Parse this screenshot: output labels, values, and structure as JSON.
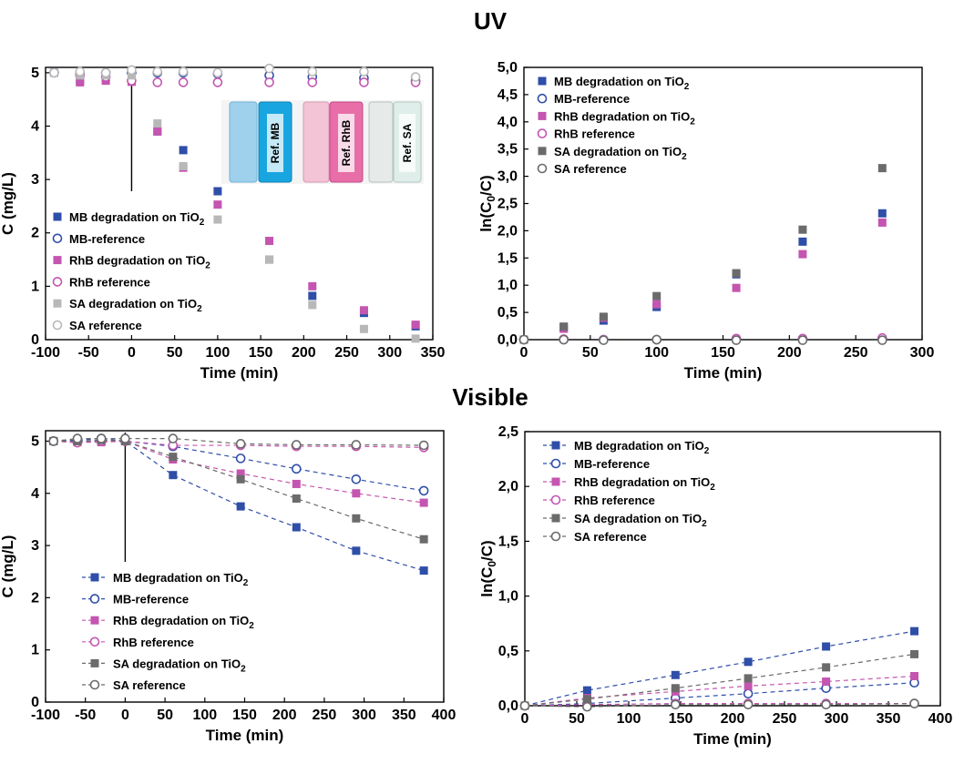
{
  "sections": {
    "uv": "UV",
    "visible": "Visible"
  },
  "colors": {
    "MB": "#2f4ea8",
    "RhB": "#c455b0",
    "SA_uv": "#b8b8b8",
    "SA_vis": "#6b6b6b",
    "SA_ref": "#8a8a8a"
  },
  "inset_labels": [
    "Ref. MB",
    "Ref. RhB",
    "Ref. SA"
  ],
  "chart_data": [
    {
      "id": "uv-conc",
      "type": "scatter",
      "xlabel": "Time (min)",
      "ylabel": "C (mg/L)",
      "xlim": [
        -100,
        350
      ],
      "ylim": [
        0,
        5.1
      ],
      "xticks": [
        "-100",
        "-50",
        "0",
        "50",
        "100",
        "150",
        "200",
        "250",
        "300",
        "350"
      ],
      "yticks": [
        "0",
        "1",
        "2",
        "3",
        "4",
        "5"
      ],
      "vline_x": 0,
      "legend_position": "left-middle",
      "series": [
        {
          "name": "MB degradation on TiO",
          "sub": "2",
          "marker": "square",
          "color": "#2f4ea8",
          "x": [
            -90,
            -60,
            -30,
            0,
            30,
            60,
            100,
            160,
            210,
            270,
            330
          ],
          "y": [
            5.0,
            4.85,
            4.9,
            4.85,
            3.9,
            3.55,
            2.78,
            1.5,
            0.82,
            0.5,
            0.25
          ]
        },
        {
          "name": "MB-reference",
          "marker": "circle",
          "color": "#2f4ea8",
          "x": [
            -90,
            -60,
            -30,
            0,
            30,
            60,
            100,
            160,
            210,
            270,
            330
          ],
          "y": [
            5.0,
            5.0,
            5.0,
            5.0,
            5.0,
            5.0,
            4.98,
            4.95,
            4.92,
            4.9,
            4.85
          ]
        },
        {
          "name": "RhB degradation on TiO",
          "sub": "2",
          "marker": "square",
          "color": "#c455b0",
          "x": [
            -90,
            -60,
            -30,
            0,
            30,
            60,
            100,
            160,
            210,
            270,
            330
          ],
          "y": [
            5.0,
            4.82,
            4.85,
            4.83,
            3.9,
            3.22,
            2.53,
            1.85,
            1.0,
            0.55,
            0.28
          ]
        },
        {
          "name": "RhB reference",
          "marker": "circle",
          "color": "#c455b0",
          "x": [
            -90,
            -60,
            -30,
            0,
            30,
            60,
            100,
            160,
            210,
            270,
            330
          ],
          "y": [
            5.0,
            4.95,
            4.92,
            4.85,
            4.82,
            4.82,
            4.82,
            4.82,
            4.82,
            4.82,
            4.82
          ]
        },
        {
          "name": "SA degradation on TiO",
          "sub": "2",
          "marker": "square",
          "color": "#b8b8b8",
          "x": [
            -90,
            -60,
            -30,
            0,
            30,
            60,
            100,
            160,
            210,
            270,
            330
          ],
          "y": [
            5.0,
            4.95,
            4.95,
            4.95,
            4.05,
            3.25,
            2.25,
            1.5,
            0.65,
            0.2,
            0.02
          ]
        },
        {
          "name": "SA reference",
          "marker": "circle",
          "color": "#b8b8b8",
          "x": [
            -90,
            -60,
            -30,
            0,
            30,
            60,
            100,
            160,
            210,
            270,
            330
          ],
          "y": [
            5.0,
            5.02,
            5.0,
            5.05,
            5.02,
            5.02,
            5.0,
            5.08,
            5.02,
            5.02,
            4.92
          ]
        }
      ]
    },
    {
      "id": "uv-ln",
      "type": "scatter",
      "xlabel": "Time (min)",
      "ylabel": "ln(C",
      "xlim": [
        0,
        300
      ],
      "ylim": [
        0,
        5.0
      ],
      "xticks": [
        "0",
        "50",
        "100",
        "150",
        "200",
        "250",
        "300"
      ],
      "yticks": [
        "0,0",
        "0,5",
        "1,0",
        "1,5",
        "2,0",
        "2,5",
        "3,0",
        "3,5",
        "4,0",
        "4,5",
        "5,0"
      ],
      "legend_position": "top-left",
      "series": [
        {
          "name": "MB degradation on TiO",
          "sub": "2",
          "marker": "square",
          "color": "#2f4ea8",
          "x": [
            0,
            30,
            60,
            100,
            160,
            210,
            270
          ],
          "y": [
            0.0,
            0.22,
            0.35,
            0.6,
            1.2,
            1.8,
            2.32
          ]
        },
        {
          "name": "MB-reference",
          "marker": "circle",
          "color": "#2f4ea8",
          "x": [
            0,
            30,
            60,
            100,
            160,
            210,
            270
          ],
          "y": [
            0.0,
            0.0,
            0.0,
            0.0,
            0.01,
            0.01,
            0.02
          ]
        },
        {
          "name": "RhB degradation on TiO",
          "sub": "2",
          "marker": "square",
          "color": "#c455b0",
          "x": [
            0,
            30,
            60,
            100,
            160,
            210,
            270
          ],
          "y": [
            0.0,
            0.2,
            0.4,
            0.65,
            0.95,
            1.57,
            2.15
          ]
        },
        {
          "name": "RhB reference",
          "marker": "circle",
          "color": "#c455b0",
          "x": [
            0,
            30,
            60,
            100,
            160,
            210,
            270
          ],
          "y": [
            0.0,
            0.01,
            0.0,
            0.0,
            0.02,
            0.02,
            0.03
          ]
        },
        {
          "name": "SA degradation on TiO",
          "sub": "2",
          "marker": "square",
          "color": "#6b6b6b",
          "x": [
            0,
            30,
            60,
            100,
            160,
            210,
            270
          ],
          "y": [
            0.0,
            0.24,
            0.42,
            0.8,
            1.22,
            2.02,
            3.15
          ]
        },
        {
          "name": "SA reference",
          "marker": "circle",
          "color": "#6b6b6b",
          "x": [
            0,
            30,
            60,
            100,
            160,
            210,
            270
          ],
          "y": [
            0.0,
            0.0,
            -0.01,
            0.0,
            -0.01,
            -0.01,
            -0.01
          ]
        }
      ]
    },
    {
      "id": "vis-conc",
      "type": "line",
      "xlabel": "Time (min)",
      "ylabel": "C (mg/L)",
      "xlim": [
        -100,
        400
      ],
      "ylim": [
        0,
        5.2
      ],
      "xticks": [
        "-100",
        "-50",
        "0",
        "50",
        "100",
        "150",
        "200",
        "250",
        "300",
        "350",
        "400"
      ],
      "yticks": [
        "0",
        "1",
        "2",
        "3",
        "4",
        "5"
      ],
      "vline_x": 0,
      "legend_position": "left-middle",
      "series": [
        {
          "name": "MB degradation on TiO",
          "sub": "2",
          "marker": "square",
          "color": "#2f4ea8",
          "x": [
            -90,
            -60,
            -30,
            0,
            60,
            145,
            215,
            290,
            375
          ],
          "y": [
            5.0,
            5.0,
            5.0,
            5.0,
            4.35,
            3.75,
            3.35,
            2.9,
            2.52
          ]
        },
        {
          "name": "MB-reference",
          "marker": "circle",
          "color": "#2f4ea8",
          "x": [
            -90,
            -60,
            -30,
            0,
            60,
            145,
            215,
            290,
            375
          ],
          "y": [
            5.0,
            5.02,
            5.05,
            5.0,
            4.9,
            4.67,
            4.47,
            4.27,
            4.05
          ]
        },
        {
          "name": "RhB degradation on TiO",
          "sub": "2",
          "marker": "square",
          "color": "#c455b0",
          "x": [
            -90,
            -60,
            -30,
            0,
            60,
            145,
            215,
            290,
            375
          ],
          "y": [
            5.0,
            4.98,
            4.98,
            5.0,
            4.65,
            4.38,
            4.18,
            4.0,
            3.82
          ]
        },
        {
          "name": "RhB reference",
          "marker": "circle",
          "color": "#c455b0",
          "x": [
            -90,
            -60,
            -30,
            0,
            60,
            145,
            215,
            290,
            375
          ],
          "y": [
            5.0,
            4.97,
            5.0,
            5.0,
            4.92,
            4.92,
            4.9,
            4.9,
            4.88
          ]
        },
        {
          "name": "SA degradation on TiO",
          "sub": "2",
          "marker": "square",
          "color": "#6b6b6b",
          "x": [
            -90,
            -60,
            -30,
            0,
            60,
            145,
            215,
            290,
            375
          ],
          "y": [
            5.0,
            5.0,
            5.02,
            5.0,
            4.7,
            4.27,
            3.9,
            3.52,
            3.12
          ]
        },
        {
          "name": "SA reference",
          "marker": "circle",
          "color": "#6b6b6b",
          "x": [
            -90,
            -60,
            -30,
            0,
            60,
            145,
            215,
            290,
            375
          ],
          "y": [
            5.0,
            5.05,
            5.05,
            5.05,
            5.05,
            4.95,
            4.93,
            4.93,
            4.92
          ]
        }
      ]
    },
    {
      "id": "vis-ln",
      "type": "line",
      "xlabel": "Time (min)",
      "ylabel": "ln(C",
      "xlim": [
        0,
        400
      ],
      "ylim": [
        0,
        2.5
      ],
      "xticks": [
        "0",
        "50",
        "100",
        "150",
        "200",
        "250",
        "300",
        "350",
        "400"
      ],
      "yticks": [
        "0,0",
        "0,5",
        "1,0",
        "1,5",
        "2,0",
        "2,5"
      ],
      "legend_position": "top-left",
      "series": [
        {
          "name": "MB degradation on TiO",
          "sub": "2",
          "marker": "square",
          "color": "#2f4ea8",
          "x": [
            0,
            60,
            145,
            215,
            290,
            375
          ],
          "y": [
            0.0,
            0.14,
            0.28,
            0.4,
            0.54,
            0.68
          ]
        },
        {
          "name": "MB-reference",
          "marker": "circle",
          "color": "#2f4ea8",
          "x": [
            0,
            60,
            145,
            215,
            290,
            375
          ],
          "y": [
            0.0,
            0.02,
            0.07,
            0.11,
            0.16,
            0.21
          ]
        },
        {
          "name": "RhB degradation on TiO",
          "sub": "2",
          "marker": "square",
          "color": "#c455b0",
          "x": [
            0,
            60,
            145,
            215,
            290,
            375
          ],
          "y": [
            0.0,
            0.07,
            0.13,
            0.18,
            0.22,
            0.27
          ]
        },
        {
          "name": "RhB reference",
          "marker": "circle",
          "color": "#c455b0",
          "x": [
            0,
            60,
            145,
            215,
            290,
            375
          ],
          "y": [
            0.0,
            0.01,
            0.02,
            0.02,
            0.02,
            0.02
          ]
        },
        {
          "name": "SA degradation on TiO",
          "sub": "2",
          "marker": "square",
          "color": "#6b6b6b",
          "x": [
            0,
            60,
            145,
            215,
            290,
            375
          ],
          "y": [
            0.0,
            0.06,
            0.16,
            0.25,
            0.35,
            0.47
          ]
        },
        {
          "name": "SA reference",
          "marker": "circle",
          "color": "#6b6b6b",
          "x": [
            0,
            60,
            145,
            215,
            290,
            375
          ],
          "y": [
            0.0,
            -0.01,
            0.01,
            0.01,
            0.01,
            0.02
          ]
        }
      ]
    }
  ]
}
